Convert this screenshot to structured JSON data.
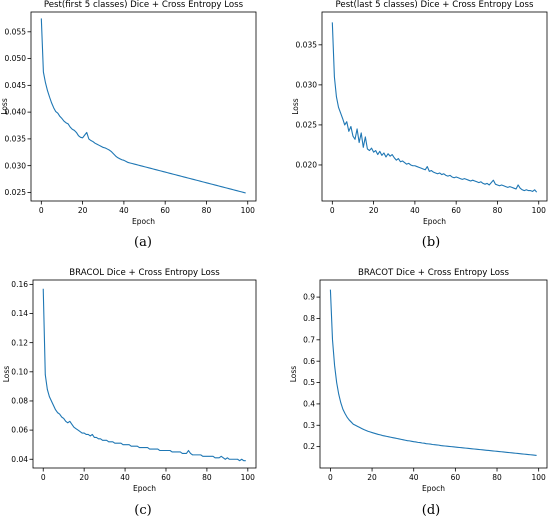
{
  "figure": {
    "panels": [
      {
        "caption": "(a)"
      },
      {
        "caption": "(b)"
      },
      {
        "caption": "(c)"
      },
      {
        "caption": "(d)"
      }
    ]
  },
  "style": {
    "line_color": "#1f77b4",
    "axis_color": "#000000"
  },
  "chart_data": [
    {
      "type": "line",
      "title": "Pest(first 5 classes) Dice + Cross Entropy Loss",
      "xlabel": "Epoch",
      "ylabel": "Loss",
      "xlim": [
        -5,
        104
      ],
      "ylim": [
        0.0234,
        0.0587
      ],
      "xticks": [
        0,
        20,
        40,
        60,
        80,
        100
      ],
      "yticks": [
        0.025,
        0.03,
        0.035,
        0.04,
        0.045,
        0.05,
        0.055
      ],
      "ytick_labels": [
        "0.025",
        "0.030",
        "0.035",
        "0.040",
        "0.045",
        "0.050",
        "0.055"
      ],
      "grid": false,
      "series": [
        {
          "x": [
            0,
            1,
            2,
            3,
            4,
            5,
            6,
            7,
            8,
            9,
            10,
            11,
            12,
            13,
            14,
            15,
            16,
            17,
            18,
            19,
            20,
            21,
            22,
            23,
            24,
            25,
            26,
            27,
            28,
            29,
            30,
            31,
            32,
            33,
            34,
            35,
            36,
            37,
            38,
            39,
            40,
            41,
            42,
            43,
            44,
            45,
            46,
            47,
            48,
            49,
            50,
            51,
            52,
            53,
            54,
            55,
            56,
            57,
            58,
            59,
            60,
            61,
            62,
            63,
            64,
            65,
            66,
            67,
            68,
            69,
            70,
            71,
            72,
            73,
            74,
            75,
            76,
            77,
            78,
            79,
            80,
            81,
            82,
            83,
            84,
            85,
            86,
            87,
            88,
            89,
            90,
            91,
            92,
            93,
            94,
            95,
            96,
            97,
            98,
            99
          ],
          "y": [
            0.0575,
            0.0475,
            0.0455,
            0.044,
            0.0428,
            0.0417,
            0.0408,
            0.0401,
            0.0398,
            0.0392,
            0.0388,
            0.0383,
            0.038,
            0.0378,
            0.0372,
            0.0368,
            0.0366,
            0.0362,
            0.0356,
            0.0353,
            0.0352,
            0.0357,
            0.0362,
            0.035,
            0.0347,
            0.0345,
            0.0342,
            0.034,
            0.0338,
            0.0336,
            0.0334,
            0.0333,
            0.0331,
            0.0329,
            0.0326,
            0.0322,
            0.0318,
            0.0315,
            0.0313,
            0.0311,
            0.031,
            0.0308,
            0.0306,
            0.0305,
            0.0304,
            0.0303,
            0.0302,
            0.0301,
            0.03,
            0.0299,
            0.0298,
            0.0297,
            0.0296,
            0.0295,
            0.0294,
            0.0293,
            0.0292,
            0.0291,
            0.029,
            0.0289,
            0.0288,
            0.0287,
            0.0286,
            0.0285,
            0.0284,
            0.0283,
            0.0282,
            0.0281,
            0.028,
            0.0279,
            0.0278,
            0.0277,
            0.0276,
            0.0275,
            0.0274,
            0.0273,
            0.0272,
            0.0271,
            0.027,
            0.0269,
            0.0268,
            0.0267,
            0.0266,
            0.0265,
            0.0264,
            0.0263,
            0.0262,
            0.0261,
            0.026,
            0.0259,
            0.0258,
            0.0257,
            0.0256,
            0.0255,
            0.0254,
            0.0253,
            0.0252,
            0.0251,
            0.025,
            0.0249
          ]
        }
      ]
    },
    {
      "type": "line",
      "title": "Pest(last 5 classes) Dice + Cross Entropy Loss",
      "xlabel": "Epoch",
      "ylabel": "Loss",
      "xlim": [
        -5,
        104
      ],
      "ylim": [
        0.0155,
        0.0391
      ],
      "xticks": [
        0,
        20,
        40,
        60,
        80,
        100
      ],
      "yticks": [
        0.02,
        0.025,
        0.03,
        0.035
      ],
      "ytick_labels": [
        "0.020",
        "0.025",
        "0.030",
        "0.035"
      ],
      "grid": false,
      "series": [
        {
          "x": [
            0,
            1,
            2,
            3,
            4,
            5,
            6,
            7,
            8,
            9,
            10,
            11,
            12,
            13,
            14,
            15,
            16,
            17,
            18,
            19,
            20,
            21,
            22,
            23,
            24,
            25,
            26,
            27,
            28,
            29,
            30,
            31,
            32,
            33,
            34,
            35,
            36,
            37,
            38,
            39,
            40,
            41,
            42,
            43,
            44,
            45,
            46,
            47,
            48,
            49,
            50,
            51,
            52,
            53,
            54,
            55,
            56,
            57,
            58,
            59,
            60,
            61,
            62,
            63,
            64,
            65,
            66,
            67,
            68,
            69,
            70,
            71,
            72,
            73,
            74,
            75,
            76,
            77,
            78,
            79,
            80,
            81,
            82,
            83,
            84,
            85,
            86,
            87,
            88,
            89,
            90,
            91,
            92,
            93,
            94,
            95,
            96,
            97,
            98,
            99
          ],
          "y": [
            0.0378,
            0.031,
            0.0285,
            0.0272,
            0.0265,
            0.0258,
            0.025,
            0.0254,
            0.0242,
            0.0248,
            0.0236,
            0.0232,
            0.0245,
            0.0228,
            0.024,
            0.0222,
            0.0235,
            0.022,
            0.0218,
            0.0221,
            0.0216,
            0.0218,
            0.0213,
            0.0217,
            0.0212,
            0.0215,
            0.021,
            0.0214,
            0.0211,
            0.0213,
            0.0209,
            0.0206,
            0.0208,
            0.0204,
            0.0205,
            0.0203,
            0.0201,
            0.0202,
            0.02,
            0.0199,
            0.0199,
            0.0198,
            0.0197,
            0.0196,
            0.0195,
            0.0194,
            0.0198,
            0.0192,
            0.0193,
            0.0191,
            0.019,
            0.0189,
            0.019,
            0.0188,
            0.0189,
            0.0187,
            0.0186,
            0.0187,
            0.0185,
            0.0184,
            0.0185,
            0.0184,
            0.0183,
            0.0182,
            0.0183,
            0.0182,
            0.0181,
            0.018,
            0.0181,
            0.018,
            0.0179,
            0.0178,
            0.0179,
            0.0177,
            0.0176,
            0.0177,
            0.0175,
            0.0178,
            0.0181,
            0.0176,
            0.0175,
            0.0174,
            0.0175,
            0.0174,
            0.0173,
            0.0172,
            0.0173,
            0.0172,
            0.0171,
            0.017,
            0.0175,
            0.0171,
            0.0169,
            0.0168,
            0.0169,
            0.0168,
            0.0168,
            0.0167,
            0.0169,
            0.0166
          ]
        }
      ]
    },
    {
      "type": "line",
      "title": "BRACOL Dice + Cross Entropy Loss",
      "xlabel": "Epoch",
      "ylabel": "Loss",
      "xlim": [
        -5,
        104
      ],
      "ylim": [
        0.034,
        0.163
      ],
      "xticks": [
        0,
        20,
        40,
        60,
        80,
        100
      ],
      "yticks": [
        0.04,
        0.06,
        0.08,
        0.1,
        0.12,
        0.14,
        0.16
      ],
      "ytick_labels": [
        "0.04",
        "0.06",
        "0.08",
        "0.10",
        "0.12",
        "0.14",
        "0.16"
      ],
      "grid": false,
      "series": [
        {
          "x": [
            0,
            1,
            2,
            3,
            4,
            5,
            6,
            7,
            8,
            9,
            10,
            11,
            12,
            13,
            14,
            15,
            16,
            17,
            18,
            19,
            20,
            21,
            22,
            23,
            24,
            25,
            26,
            27,
            28,
            29,
            30,
            31,
            32,
            33,
            34,
            35,
            36,
            37,
            38,
            39,
            40,
            41,
            42,
            43,
            44,
            45,
            46,
            47,
            48,
            49,
            50,
            51,
            52,
            53,
            54,
            55,
            56,
            57,
            58,
            59,
            60,
            61,
            62,
            63,
            64,
            65,
            66,
            67,
            68,
            69,
            70,
            71,
            72,
            73,
            74,
            75,
            76,
            77,
            78,
            79,
            80,
            81,
            82,
            83,
            84,
            85,
            86,
            87,
            88,
            89,
            90,
            91,
            92,
            93,
            94,
            95,
            96,
            97,
            98,
            99
          ],
          "y": [
            0.157,
            0.098,
            0.088,
            0.083,
            0.08,
            0.077,
            0.074,
            0.072,
            0.071,
            0.069,
            0.068,
            0.066,
            0.065,
            0.066,
            0.064,
            0.062,
            0.061,
            0.06,
            0.059,
            0.058,
            0.058,
            0.057,
            0.057,
            0.056,
            0.057,
            0.055,
            0.055,
            0.054,
            0.054,
            0.053,
            0.053,
            0.053,
            0.052,
            0.052,
            0.052,
            0.051,
            0.051,
            0.051,
            0.051,
            0.05,
            0.05,
            0.05,
            0.05,
            0.049,
            0.049,
            0.049,
            0.049,
            0.048,
            0.048,
            0.048,
            0.048,
            0.048,
            0.047,
            0.047,
            0.047,
            0.047,
            0.047,
            0.046,
            0.046,
            0.046,
            0.046,
            0.046,
            0.046,
            0.045,
            0.045,
            0.045,
            0.045,
            0.045,
            0.044,
            0.044,
            0.044,
            0.046,
            0.044,
            0.043,
            0.043,
            0.043,
            0.043,
            0.043,
            0.042,
            0.042,
            0.042,
            0.042,
            0.042,
            0.042,
            0.041,
            0.041,
            0.041,
            0.042,
            0.041,
            0.04,
            0.041,
            0.04,
            0.04,
            0.04,
            0.04,
            0.04,
            0.039,
            0.04,
            0.039,
            0.039
          ]
        }
      ]
    },
    {
      "type": "line",
      "title": "BRACOT Dice + Cross Entropy Loss",
      "xlabel": "Epoch",
      "ylabel": "Loss",
      "xlim": [
        -5,
        104
      ],
      "ylim": [
        0.1,
        0.98
      ],
      "xticks": [
        0,
        20,
        40,
        60,
        80,
        100
      ],
      "yticks": [
        0.2,
        0.3,
        0.4,
        0.5,
        0.6,
        0.7,
        0.8,
        0.9
      ],
      "ytick_labels": [
        "0.2",
        "0.3",
        "0.4",
        "0.5",
        "0.6",
        "0.7",
        "0.8",
        "0.9"
      ],
      "grid": false,
      "series": [
        {
          "x": [
            0,
            1,
            2,
            3,
            4,
            5,
            6,
            7,
            8,
            9,
            10,
            11,
            12,
            13,
            14,
            15,
            16,
            17,
            18,
            19,
            20,
            21,
            22,
            23,
            24,
            25,
            26,
            27,
            28,
            29,
            30,
            31,
            32,
            33,
            34,
            35,
            36,
            37,
            38,
            39,
            40,
            41,
            42,
            43,
            44,
            45,
            46,
            47,
            48,
            49,
            50,
            51,
            52,
            53,
            54,
            55,
            56,
            57,
            58,
            59,
            60,
            61,
            62,
            63,
            64,
            65,
            66,
            67,
            68,
            69,
            70,
            71,
            72,
            73,
            74,
            75,
            76,
            77,
            78,
            79,
            80,
            81,
            82,
            83,
            84,
            85,
            86,
            87,
            88,
            89,
            90,
            91,
            92,
            93,
            94,
            95,
            96,
            97,
            98,
            99
          ],
          "y": [
            0.935,
            0.7,
            0.58,
            0.5,
            0.445,
            0.405,
            0.375,
            0.355,
            0.338,
            0.325,
            0.315,
            0.305,
            0.3,
            0.295,
            0.29,
            0.285,
            0.28,
            0.276,
            0.272,
            0.269,
            0.266,
            0.263,
            0.26,
            0.257,
            0.255,
            0.252,
            0.25,
            0.248,
            0.246,
            0.244,
            0.242,
            0.24,
            0.238,
            0.236,
            0.234,
            0.232,
            0.23,
            0.228,
            0.227,
            0.225,
            0.223,
            0.222,
            0.22,
            0.219,
            0.217,
            0.216,
            0.214,
            0.213,
            0.212,
            0.21,
            0.209,
            0.208,
            0.207,
            0.205,
            0.204,
            0.203,
            0.202,
            0.201,
            0.2,
            0.199,
            0.198,
            0.197,
            0.196,
            0.195,
            0.194,
            0.193,
            0.192,
            0.191,
            0.19,
            0.189,
            0.188,
            0.187,
            0.186,
            0.185,
            0.184,
            0.183,
            0.182,
            0.181,
            0.18,
            0.179,
            0.178,
            0.177,
            0.176,
            0.175,
            0.174,
            0.173,
            0.172,
            0.171,
            0.17,
            0.169,
            0.168,
            0.167,
            0.166,
            0.165,
            0.164,
            0.163,
            0.162,
            0.161,
            0.16,
            0.159
          ]
        }
      ]
    }
  ]
}
